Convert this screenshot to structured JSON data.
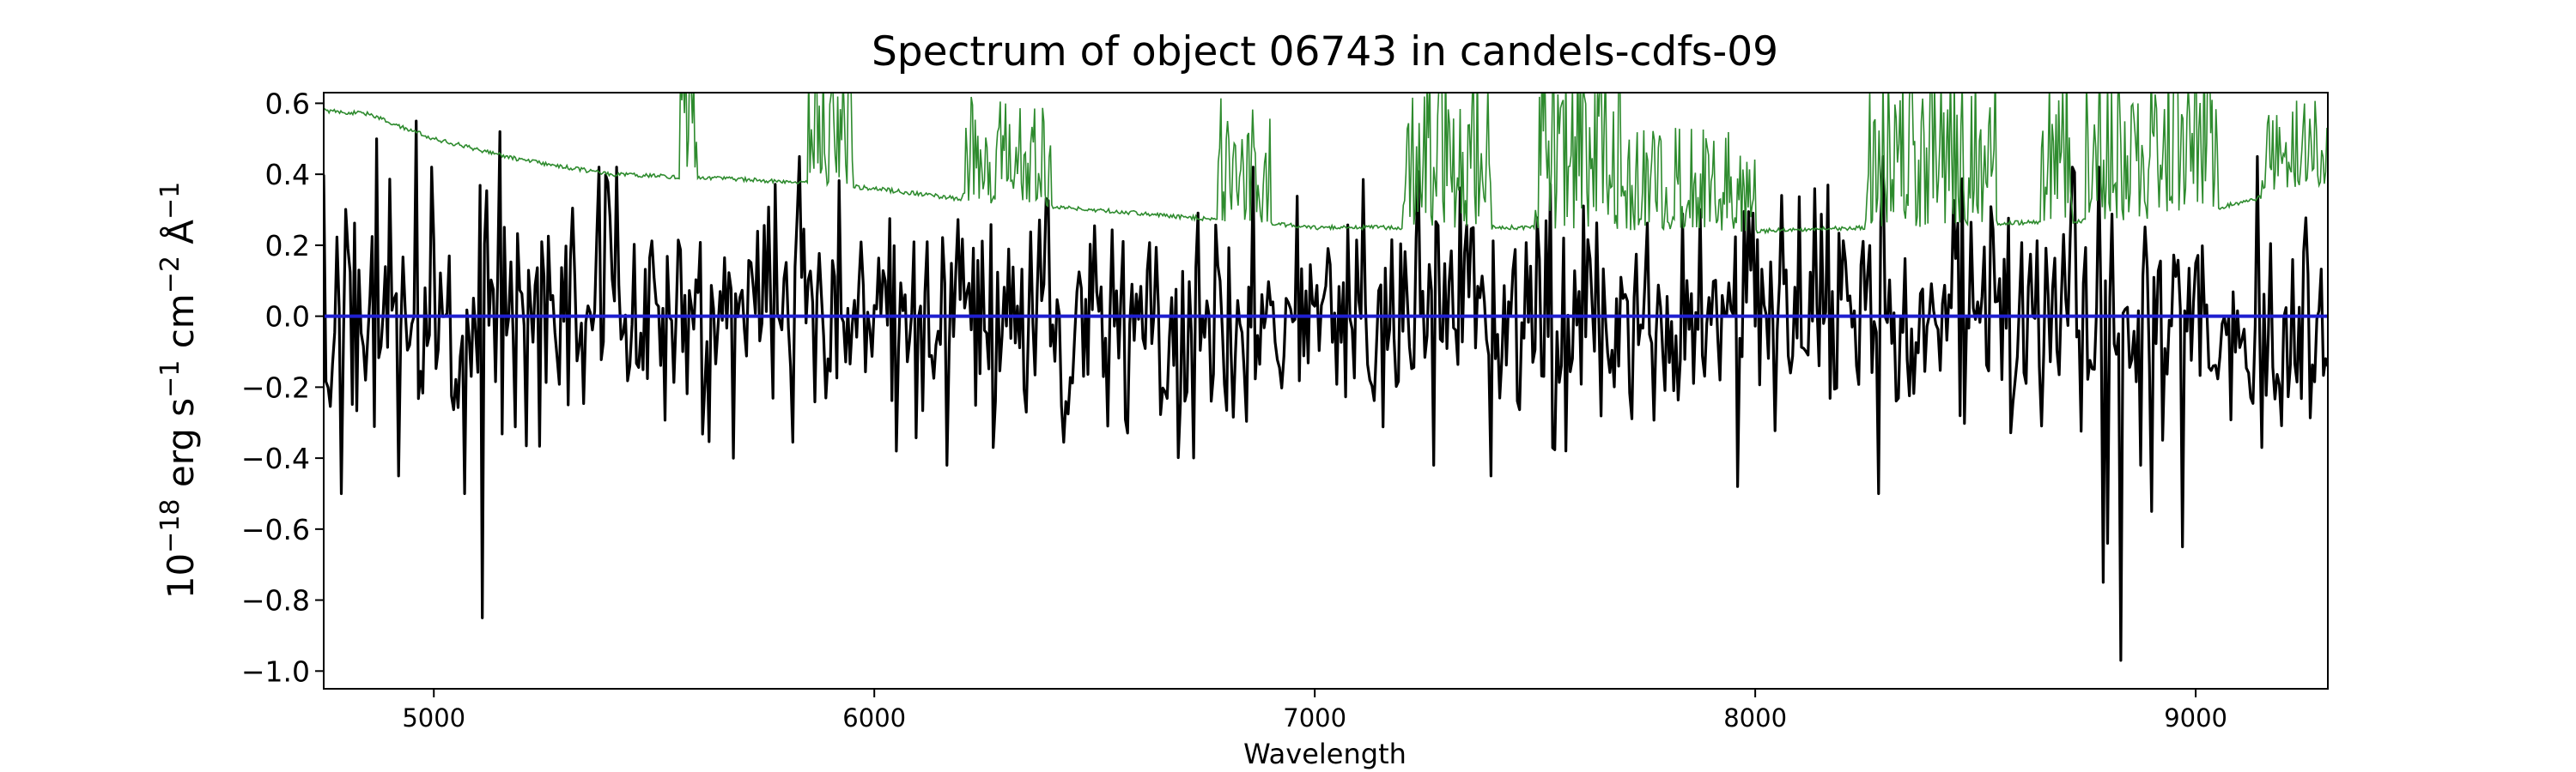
{
  "chart_data": {
    "type": "line",
    "title": "Spectrum of object 06743 in candels-cdfs-09",
    "xlabel": "Wavelength",
    "ylabel_parts": {
      "base": "10",
      "exp1": "−18",
      "t1": " erg s",
      "exp2": "−1",
      "t2": " cm",
      "exp3": "−2",
      "t3": " Å",
      "exp4": "−1"
    },
    "xlim": [
      4750,
      9300
    ],
    "ylim": [
      -1.05,
      0.63
    ],
    "x_ticks": [
      5000,
      6000,
      7000,
      8000,
      9000
    ],
    "x_tick_labels": [
      "5000",
      "6000",
      "7000",
      "8000",
      "9000"
    ],
    "y_ticks": [
      0.6,
      0.4,
      0.2,
      0.0,
      -0.2,
      -0.4,
      -0.6,
      -0.8,
      -1.0
    ],
    "y_tick_labels": [
      "0.6",
      "0.4",
      "0.2",
      "0.0",
      "−0.2",
      "−0.4",
      "−0.6",
      "−0.8",
      "−1.0"
    ],
    "grid": false,
    "legend": "none",
    "series": [
      {
        "role": "flux",
        "color": "#000000",
        "x_range": [
          4750,
          9300
        ],
        "x_step": 5,
        "mean": 0.0,
        "noise_sigma": 0.17,
        "spikes": [
          {
            "x": 4790,
            "y": -0.5
          },
          {
            "x": 4870,
            "y": 0.5
          },
          {
            "x": 4920,
            "y": -0.45
          },
          {
            "x": 4960,
            "y": 0.55
          },
          {
            "x": 5070,
            "y": -0.5
          },
          {
            "x": 5110,
            "y": -0.85
          },
          {
            "x": 5150,
            "y": 0.52
          },
          {
            "x": 5680,
            "y": -0.4
          },
          {
            "x": 5830,
            "y": 0.45
          },
          {
            "x": 6050,
            "y": -0.38
          },
          {
            "x": 6270,
            "y": -0.37
          },
          {
            "x": 7400,
            "y": -0.45
          },
          {
            "x": 7960,
            "y": -0.48
          },
          {
            "x": 8280,
            "y": -0.5
          },
          {
            "x": 8290,
            "y": 0.45
          },
          {
            "x": 8790,
            "y": -0.75
          },
          {
            "x": 8800,
            "y": -0.64
          },
          {
            "x": 8830,
            "y": -0.97
          },
          {
            "x": 8900,
            "y": -0.55
          },
          {
            "x": 8970,
            "y": -0.65
          },
          {
            "x": 9140,
            "y": 0.45
          },
          {
            "x": 9150,
            "y": -0.37
          }
        ]
      },
      {
        "role": "continuum",
        "color": "#1f1fd0",
        "points": [
          [
            4750,
            0.0
          ],
          [
            9300,
            0.0
          ]
        ]
      },
      {
        "role": "error",
        "color": "#2e8b2e",
        "baseline": [
          [
            4750,
            0.58
          ],
          [
            4850,
            0.57
          ],
          [
            5000,
            0.5
          ],
          [
            5200,
            0.44
          ],
          [
            5400,
            0.4
          ],
          [
            5600,
            0.39
          ],
          [
            5800,
            0.38
          ],
          [
            6000,
            0.36
          ],
          [
            6200,
            0.33
          ],
          [
            6500,
            0.3
          ],
          [
            7000,
            0.25
          ],
          [
            7500,
            0.25
          ],
          [
            8000,
            0.24
          ],
          [
            8500,
            0.26
          ],
          [
            8800,
            0.27
          ],
          [
            9000,
            0.29
          ],
          [
            9300,
            0.38
          ]
        ],
        "noisy_bands": [
          {
            "from": 5560,
            "to": 5600,
            "amp": 0.4
          },
          {
            "from": 5850,
            "to": 5950,
            "amp": 0.35
          },
          {
            "from": 6200,
            "to": 6400,
            "amp": 0.3
          },
          {
            "from": 6780,
            "to": 6900,
            "amp": 0.35
          },
          {
            "from": 7200,
            "to": 7400,
            "amp": 0.5
          },
          {
            "from": 7500,
            "to": 7700,
            "amp": 0.5
          },
          {
            "from": 7700,
            "to": 8000,
            "amp": 0.3
          },
          {
            "from": 8250,
            "to": 8550,
            "amp": 0.5
          },
          {
            "from": 8650,
            "to": 8720,
            "amp": 0.5
          },
          {
            "from": 8750,
            "to": 9050,
            "amp": 0.5
          },
          {
            "from": 9150,
            "to": 9300,
            "amp": 0.25
          }
        ]
      }
    ]
  }
}
